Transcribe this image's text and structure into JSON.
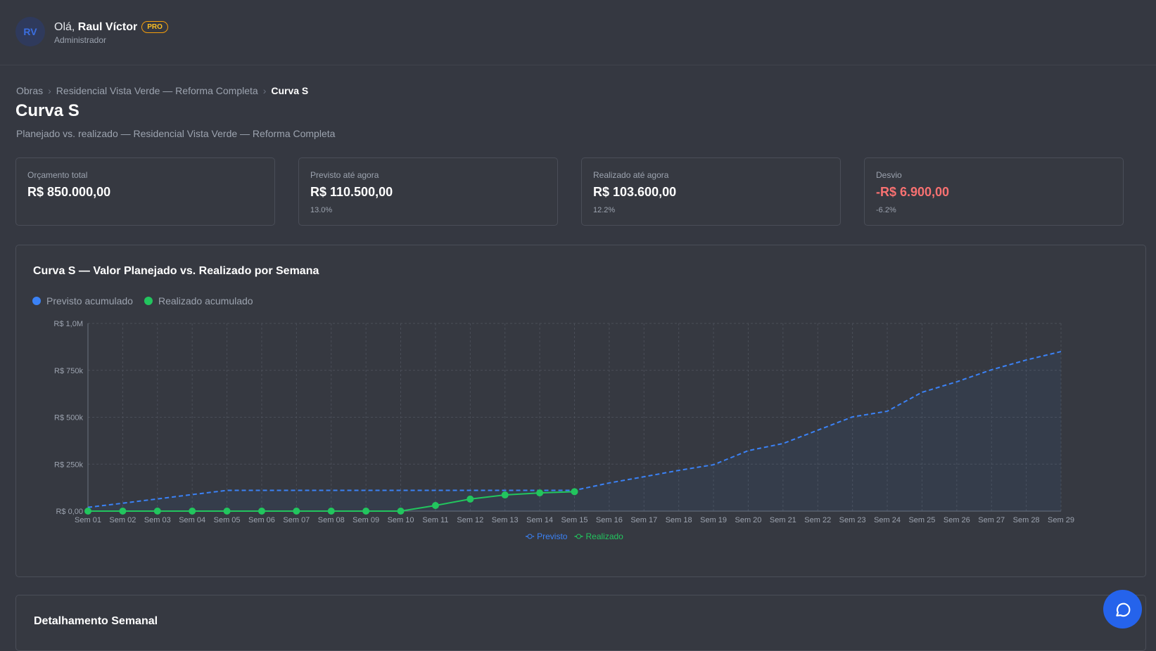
{
  "header": {
    "avatar": "RV",
    "greeting": "Olá,",
    "name": "Raul Víctor",
    "badge": "PRO",
    "role": "Administrador"
  },
  "breadcrumb": [
    "Obras",
    "Residencial Vista Verde — Reforma Completa",
    "Curva S"
  ],
  "page_title": "Curva S",
  "page_subtitle": "Planejado vs. realizado — Residencial Vista Verde — Reforma Completa",
  "cards": [
    {
      "label": "Orçamento total",
      "value": "R$ 850.000,00"
    },
    {
      "label": "Previsto até agora",
      "value": "R$ 110.500,00",
      "sub": "13.0%"
    },
    {
      "label": "Realizado até agora",
      "value": "R$ 103.600,00",
      "sub": "12.2%"
    },
    {
      "label": "Desvio",
      "value": "-R$ 6.900,00",
      "sub": "-6.2%"
    }
  ],
  "chart_data": {
    "type": "line",
    "title": "Curva S — Valor Planejado vs. Realizado por Semana",
    "legend_top": [
      "Previsto acumulado",
      "Realizado acumulado"
    ],
    "categories": [
      "Sem 01",
      "Sem 02",
      "Sem 03",
      "Sem 04",
      "Sem 05",
      "Sem 06",
      "Sem 07",
      "Sem 08",
      "Sem 09",
      "Sem 10",
      "Sem 11",
      "Sem 12",
      "Sem 13",
      "Sem 14",
      "Sem 15",
      "Sem 16",
      "Sem 17",
      "Sem 18",
      "Sem 19",
      "Sem 20",
      "Sem 21",
      "Sem 22",
      "Sem 23",
      "Sem 24",
      "Sem 25",
      "Sem 26",
      "Sem 27",
      "Sem 28",
      "Sem 29"
    ],
    "series": [
      {
        "name": "Previsto",
        "color": "#3b82f6",
        "values": [
          20000,
          42000,
          65000,
          88000,
          110500,
          110500,
          110500,
          110500,
          110500,
          110500,
          110500,
          110500,
          110500,
          110500,
          110500,
          150000,
          183000,
          217000,
          247000,
          322000,
          360000,
          431000,
          502000,
          532000,
          633000,
          689000,
          753000,
          805000,
          850000
        ]
      },
      {
        "name": "Realizado",
        "color": "#22c55e",
        "values": [
          0,
          0,
          0,
          0,
          0,
          0,
          0,
          0,
          0,
          0,
          30000,
          64000,
          86000,
          97000,
          103600,
          null,
          null,
          null,
          null,
          null,
          null,
          null,
          null,
          null,
          null,
          null,
          null,
          null,
          null
        ]
      }
    ],
    "ylim": [
      0,
      1000000
    ],
    "yticks": [
      {
        "value": 0,
        "label": "R$ 0,00"
      },
      {
        "value": 250000,
        "label": "R$ 250k"
      },
      {
        "value": 500000,
        "label": "R$ 500k"
      },
      {
        "value": 750000,
        "label": "R$ 750k"
      },
      {
        "value": 1000000,
        "label": "R$ 1,0M"
      }
    ],
    "grid": true
  },
  "section_title": "Detalhamento Semanal"
}
